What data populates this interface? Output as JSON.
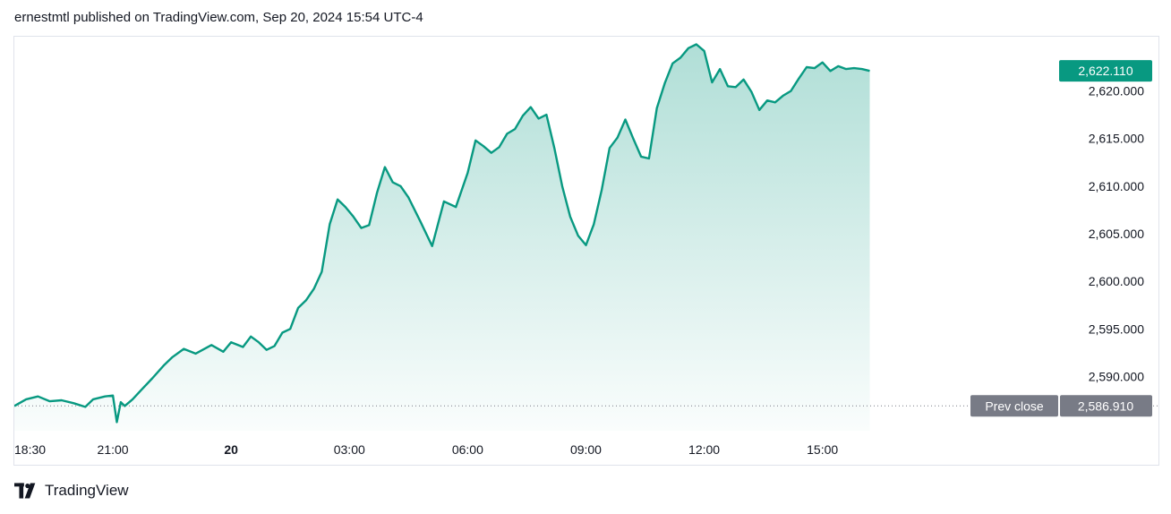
{
  "header": {
    "publisher_line": "ernestmtl published on TradingView.com, Sep 20, 2024 15:54 UTC-4"
  },
  "footer": {
    "brand": "TradingView",
    "logo_icon": "tradingview-logo-icon"
  },
  "colors": {
    "line": "#089981",
    "area_top": "#089981",
    "price_badge": "#089981",
    "prev_close_badge": "#787b86",
    "grid": "#e0e3eb"
  },
  "chart_data": {
    "type": "area",
    "y_ticks": [
      "2,620.000",
      "2,615.000",
      "2,610.000",
      "2,605.000",
      "2,600.000",
      "2,595.000",
      "2,590.000"
    ],
    "y_tick_values": [
      2620,
      2615,
      2610,
      2605,
      2600,
      2595,
      2590
    ],
    "x_ticks": [
      "18:30",
      "21:00",
      "20",
      "03:00",
      "06:00",
      "09:00",
      "12:00",
      "15:00"
    ],
    "x_tick_hours": [
      0,
      2.5,
      5.5,
      8.5,
      11.5,
      14.5,
      17.5,
      20.5
    ],
    "x_bold_tick": "20",
    "ylim": [
      2584.3,
      2625.7
    ],
    "xlim_hours": [
      0,
      25.05
    ],
    "last_price_label": "2,622.110",
    "last_price": 2622.11,
    "prev_close_text": "Prev close",
    "prev_close_label": "2,586.910",
    "prev_close": 2586.91,
    "series": [
      {
        "x": [
          0,
          0.3,
          0.6,
          0.9,
          1.2,
          1.5,
          1.8,
          2.0,
          2.3,
          2.5,
          2.6,
          2.7,
          2.8,
          3.0,
          3.2,
          3.5,
          3.8,
          4.0,
          4.3,
          4.6,
          5.0,
          5.3,
          5.5,
          5.8,
          6.0,
          6.2,
          6.4,
          6.6,
          6.8,
          7.0,
          7.2,
          7.4,
          7.6,
          7.8,
          8.0,
          8.2,
          8.4,
          8.6,
          8.8,
          9.0,
          9.2,
          9.4,
          9.6,
          9.8,
          10.0,
          10.3,
          10.6,
          10.9,
          11.2,
          11.5,
          11.7,
          11.9,
          12.1,
          12.3,
          12.5,
          12.7,
          12.9,
          13.1,
          13.3,
          13.5,
          13.7,
          13.9,
          14.1,
          14.3,
          14.5,
          14.7,
          14.9,
          15.1,
          15.3,
          15.5,
          15.7,
          15.9,
          16.1,
          16.3,
          16.5,
          16.7,
          16.9,
          17.1,
          17.3,
          17.5,
          17.7,
          17.9,
          18.1,
          18.3,
          18.5,
          18.7,
          18.9,
          19.1,
          19.3,
          19.5,
          19.7,
          19.9,
          20.1,
          20.3,
          20.5,
          20.7,
          20.9,
          21.1,
          21.3,
          21.5,
          21.7
        ],
        "y": [
          2586.9,
          2587.6,
          2587.9,
          2587.4,
          2587.5,
          2587.2,
          2586.8,
          2587.6,
          2587.9,
          2588.0,
          2585.2,
          2587.3,
          2586.9,
          2587.6,
          2588.5,
          2589.8,
          2591.2,
          2592.0,
          2592.9,
          2592.4,
          2593.3,
          2592.6,
          2593.6,
          2593.1,
          2594.2,
          2593.6,
          2592.8,
          2593.2,
          2594.6,
          2595.0,
          2597.2,
          2598.0,
          2599.2,
          2601.0,
          2606.0,
          2608.6,
          2607.8,
          2606.8,
          2605.6,
          2605.9,
          2609.3,
          2612.0,
          2610.4,
          2610.0,
          2608.8,
          2606.3,
          2603.7,
          2608.4,
          2607.8,
          2611.4,
          2614.8,
          2614.2,
          2613.5,
          2614.1,
          2615.5,
          2616.0,
          2617.4,
          2618.3,
          2617.1,
          2617.5,
          2614.0,
          2610.0,
          2606.8,
          2604.8,
          2603.8,
          2606.0,
          2609.6,
          2614.0,
          2615.1,
          2617.0,
          2615.0,
          2613.1,
          2612.9,
          2618.2,
          2620.8,
          2622.9,
          2623.5,
          2624.5,
          2624.9,
          2624.2,
          2620.9,
          2622.3,
          2620.5,
          2620.4,
          2621.2,
          2619.9,
          2618.0,
          2619.0,
          2618.8,
          2619.5,
          2620.0,
          2621.3,
          2622.5,
          2622.4,
          2623.0,
          2622.1,
          2622.6,
          2622.3,
          2622.4,
          2622.3,
          2622.11
        ]
      }
    ]
  }
}
